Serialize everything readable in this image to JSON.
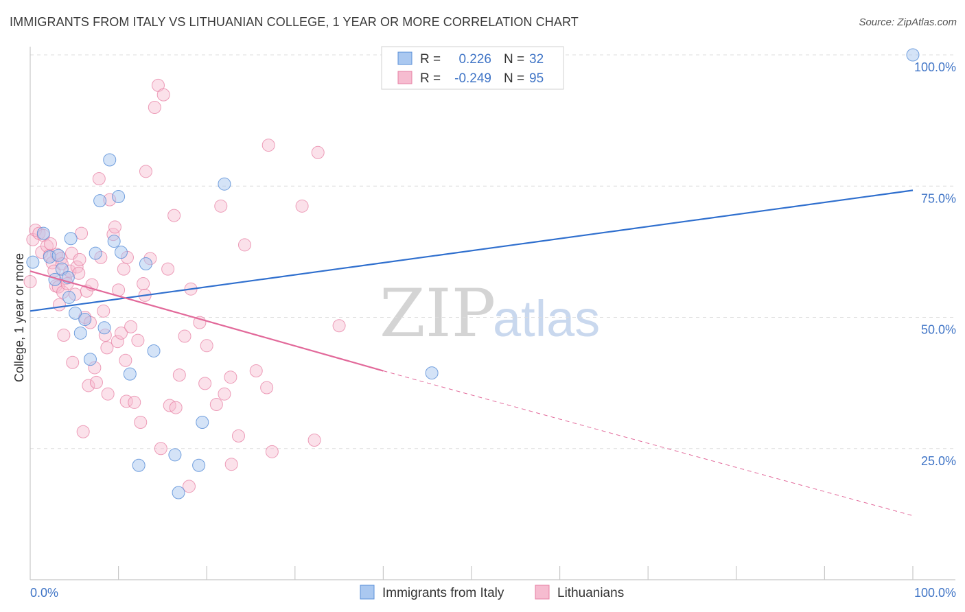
{
  "title": "IMMIGRANTS FROM ITALY VS LITHUANIAN COLLEGE, 1 YEAR OR MORE CORRELATION CHART",
  "source": "Source: ZipAtlas.com",
  "watermark": {
    "zip": "ZIP",
    "atlas": "atlas"
  },
  "colors": {
    "blue_fill": "#aac8f0",
    "blue_stroke": "#5a8fd8",
    "blue_line": "#2f6fce",
    "pink_fill": "#f6bcd0",
    "pink_stroke": "#e77fa3",
    "pink_line": "#e2699a",
    "tick_text": "#3f74c6",
    "grid": "#dcdcdc"
  },
  "legend": {
    "rows": [
      {
        "r_label": "R =",
        "r_value": "0.226",
        "n_label": "N =",
        "n_value": "32"
      },
      {
        "r_label": "R =",
        "r_value": "-0.249",
        "n_label": "N =",
        "n_value": "95"
      }
    ]
  },
  "bottom_legend": [
    "Immigrants from Italy",
    "Lithuanians"
  ],
  "chart_data": {
    "type": "scatter",
    "title": "IMMIGRANTS FROM ITALY VS LITHUANIAN COLLEGE, 1 YEAR OR MORE CORRELATION CHART",
    "xlabel": "",
    "ylabel": "College, 1 year or more",
    "xlim": [
      0,
      100
    ],
    "ylim": [
      0,
      100
    ],
    "x_tick_labels": [
      "0.0%",
      "100.0%"
    ],
    "y_tick_labels": [
      "25.0%",
      "50.0%",
      "75.0%",
      "100.0%"
    ],
    "y_ticks": [
      25,
      50,
      75,
      100
    ],
    "grid": true,
    "legend_position": "top-center",
    "series": [
      {
        "name": "Immigrants from Italy",
        "r": 0.226,
        "n": 32,
        "trend": {
          "x0": 0,
          "y0": 51.2,
          "x1": 100,
          "y1": 74.2
        },
        "points": [
          [
            0.3,
            60.5
          ],
          [
            1.5,
            66.0
          ],
          [
            2.2,
            61.5
          ],
          [
            2.8,
            57.2
          ],
          [
            3.2,
            61.8
          ],
          [
            3.6,
            59.2
          ],
          [
            4.3,
            57.6
          ],
          [
            4.4,
            53.8
          ],
          [
            4.6,
            65.0
          ],
          [
            5.1,
            50.8
          ],
          [
            5.7,
            47.0
          ],
          [
            6.2,
            49.6
          ],
          [
            6.8,
            42.0
          ],
          [
            7.4,
            62.2
          ],
          [
            7.9,
            72.2
          ],
          [
            8.4,
            48.0
          ],
          [
            9.0,
            80.0
          ],
          [
            9.5,
            64.5
          ],
          [
            10.0,
            73.0
          ],
          [
            10.3,
            62.4
          ],
          [
            11.3,
            39.2
          ],
          [
            12.3,
            21.8
          ],
          [
            13.1,
            60.2
          ],
          [
            14.0,
            43.6
          ],
          [
            16.4,
            23.8
          ],
          [
            16.8,
            16.6
          ],
          [
            19.1,
            21.8
          ],
          [
            19.5,
            30.0
          ],
          [
            22.0,
            75.4
          ],
          [
            45.5,
            39.4
          ],
          [
            100,
            100
          ]
        ]
      },
      {
        "name": "Lithuanians",
        "r": -0.249,
        "n": 95,
        "trend_solid": {
          "x0": 0,
          "y0": 58.8,
          "x1": 40,
          "y1": 39.8
        },
        "trend_dashed": {
          "x0": 40,
          "y0": 39.8,
          "x1": 100,
          "y1": 12.2
        },
        "points": [
          [
            0.0,
            56.8
          ],
          [
            0.3,
            64.8
          ],
          [
            0.6,
            66.6
          ],
          [
            1.0,
            66.0
          ],
          [
            1.3,
            62.4
          ],
          [
            1.5,
            65.6
          ],
          [
            1.9,
            63.6
          ],
          [
            2.2,
            61.8
          ],
          [
            2.3,
            64.0
          ],
          [
            2.5,
            60.4
          ],
          [
            2.7,
            58.8
          ],
          [
            2.9,
            56.0
          ],
          [
            3.0,
            62.0
          ],
          [
            3.2,
            55.8
          ],
          [
            3.3,
            52.4
          ],
          [
            3.5,
            61.2
          ],
          [
            3.6,
            60.2
          ],
          [
            3.7,
            54.8
          ],
          [
            3.8,
            46.6
          ],
          [
            4.0,
            57.4
          ],
          [
            4.2,
            56.4
          ],
          [
            4.5,
            58.8
          ],
          [
            4.7,
            62.2
          ],
          [
            4.8,
            41.4
          ],
          [
            5.1,
            54.4
          ],
          [
            5.3,
            59.6
          ],
          [
            5.5,
            58.4
          ],
          [
            5.6,
            61.0
          ],
          [
            5.8,
            66.0
          ],
          [
            6.0,
            28.2
          ],
          [
            6.2,
            50.0
          ],
          [
            6.4,
            55.0
          ],
          [
            6.6,
            37.0
          ],
          [
            6.8,
            49.0
          ],
          [
            7.0,
            56.2
          ],
          [
            7.3,
            40.4
          ],
          [
            7.5,
            37.6
          ],
          [
            7.8,
            76.4
          ],
          [
            8.0,
            61.4
          ],
          [
            8.3,
            51.2
          ],
          [
            8.5,
            46.6
          ],
          [
            8.7,
            44.2
          ],
          [
            8.8,
            35.4
          ],
          [
            9.0,
            72.4
          ],
          [
            9.4,
            65.8
          ],
          [
            9.6,
            67.2
          ],
          [
            9.9,
            45.4
          ],
          [
            10.0,
            55.2
          ],
          [
            10.3,
            47.0
          ],
          [
            10.6,
            59.2
          ],
          [
            10.8,
            41.8
          ],
          [
            10.9,
            34.0
          ],
          [
            11.0,
            61.4
          ],
          [
            11.4,
            48.2
          ],
          [
            11.8,
            33.8
          ],
          [
            12.2,
            45.6
          ],
          [
            12.5,
            30.0
          ],
          [
            12.8,
            56.4
          ],
          [
            13.0,
            54.2
          ],
          [
            13.1,
            77.8
          ],
          [
            13.6,
            61.2
          ],
          [
            14.1,
            90.0
          ],
          [
            14.5,
            94.2
          ],
          [
            14.8,
            25.0
          ],
          [
            15.1,
            92.4
          ],
          [
            15.6,
            59.2
          ],
          [
            15.8,
            33.2
          ],
          [
            16.3,
            69.4
          ],
          [
            16.5,
            32.8
          ],
          [
            16.9,
            39.0
          ],
          [
            17.5,
            46.4
          ],
          [
            18.0,
            17.8
          ],
          [
            18.2,
            55.4
          ],
          [
            19.2,
            49.0
          ],
          [
            19.8,
            37.4
          ],
          [
            20.0,
            44.6
          ],
          [
            21.1,
            33.4
          ],
          [
            21.6,
            71.2
          ],
          [
            22.0,
            35.4
          ],
          [
            22.7,
            38.6
          ],
          [
            22.8,
            22.0
          ],
          [
            23.6,
            27.4
          ],
          [
            24.3,
            63.8
          ],
          [
            25.6,
            39.8
          ],
          [
            26.8,
            36.6
          ],
          [
            27.0,
            82.8
          ],
          [
            27.4,
            24.4
          ],
          [
            30.8,
            71.2
          ],
          [
            32.2,
            26.6
          ],
          [
            32.6,
            81.4
          ],
          [
            35.0,
            48.4
          ]
        ]
      }
    ]
  }
}
